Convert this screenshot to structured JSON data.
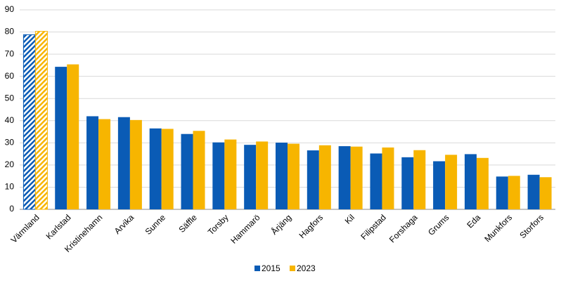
{
  "chart_data": {
    "type": "bar",
    "categories": [
      "Värmland",
      "Karlstad",
      "Kristinehamn",
      "Arvika",
      "Sunne",
      "Säffle",
      "Torsby",
      "Hammarö",
      "Årjäng",
      "Hagfors",
      "Kil",
      "Filipstad",
      "Forshaga",
      "Grums",
      "Eda",
      "Munkfors",
      "Storfors"
    ],
    "series": [
      {
        "name": "2015",
        "color": "#0a5bb5",
        "values": [
          78.8,
          64.3,
          42.0,
          41.6,
          36.5,
          34.0,
          30.2,
          29.1,
          30.1,
          26.6,
          28.5,
          25.2,
          23.5,
          21.7,
          24.9,
          14.8,
          15.6
        ]
      },
      {
        "name": "2023",
        "color": "#f7b500",
        "values": [
          80.3,
          65.4,
          40.7,
          40.3,
          36.3,
          35.4,
          31.5,
          30.6,
          29.6,
          28.9,
          28.3,
          27.9,
          26.7,
          24.6,
          23.2,
          15.1,
          14.5
        ]
      }
    ],
    "hatched_categories": [
      0
    ],
    "ylim": [
      0,
      90
    ],
    "yticks": [
      0,
      10,
      20,
      30,
      40,
      50,
      60,
      70,
      80,
      90
    ],
    "grid": true,
    "legend": "bottom"
  }
}
